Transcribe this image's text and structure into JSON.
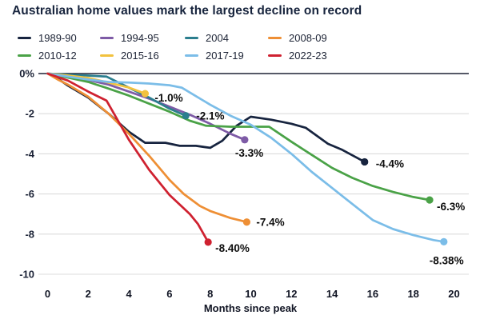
{
  "title": "Australian home values mark the largest decline on record",
  "chart_data": {
    "type": "line",
    "title": "Australian home values mark the largest decline on record",
    "xlabel": "Months since peak",
    "ylabel": "",
    "xlim": [
      0,
      20
    ],
    "ylim": [
      -10,
      0
    ],
    "grid": true,
    "legend_position": "top",
    "xticks": [
      0,
      2,
      4,
      6,
      8,
      10,
      12,
      14,
      16,
      18,
      20
    ],
    "yticks": [
      {
        "label": "0%",
        "value": 0
      },
      {
        "label": "-2",
        "value": -2
      },
      {
        "label": "-4",
        "value": -4
      },
      {
        "label": "-6",
        "value": -6
      },
      {
        "label": "-8",
        "value": -8
      },
      {
        "label": "-10",
        "value": -10
      }
    ],
    "colors": {
      "grid": "#dcdcdc",
      "zero_line": "#1e2235",
      "label_text": "#0d0d0d"
    },
    "series": [
      {
        "name": "1989-90",
        "color": "#17243f",
        "end_label": "-4.4%",
        "points": [
          [
            0,
            0
          ],
          [
            0.5,
            -0.25
          ],
          [
            1,
            -0.6
          ],
          [
            2,
            -1.2
          ],
          [
            3,
            -2.0
          ],
          [
            4,
            -2.9
          ],
          [
            4.8,
            -3.45
          ],
          [
            5.8,
            -3.45
          ],
          [
            6.5,
            -3.6
          ],
          [
            7.3,
            -3.6
          ],
          [
            8,
            -3.7
          ],
          [
            8.6,
            -3.35
          ],
          [
            9.3,
            -2.6
          ],
          [
            10,
            -2.15
          ],
          [
            11,
            -2.3
          ],
          [
            12,
            -2.5
          ],
          [
            12.7,
            -2.7
          ],
          [
            13.8,
            -3.5
          ],
          [
            14.5,
            -3.8
          ],
          [
            15.6,
            -4.4
          ]
        ],
        "label_dx": 14,
        "label_dy": 7
      },
      {
        "name": "1994-95",
        "color": "#7e5ba6",
        "end_label": "-3.3%",
        "points": [
          [
            0,
            0
          ],
          [
            1,
            -0.15
          ],
          [
            2,
            -0.32
          ],
          [
            3,
            -0.55
          ],
          [
            4,
            -0.9
          ],
          [
            5,
            -1.25
          ],
          [
            6,
            -1.65
          ],
          [
            7,
            -2.05
          ],
          [
            8,
            -2.5
          ],
          [
            9,
            -3.0
          ],
          [
            9.7,
            -3.3
          ]
        ],
        "label_dx": -12,
        "label_dy": 21
      },
      {
        "name": "2004",
        "color": "#2b7e8e",
        "end_label": "-2.1%",
        "points": [
          [
            0,
            0
          ],
          [
            1,
            -0.06
          ],
          [
            2,
            -0.1
          ],
          [
            2.9,
            -0.15
          ],
          [
            4,
            -0.7
          ],
          [
            5,
            -1.2
          ],
          [
            6,
            -1.75
          ],
          [
            6.8,
            -2.1
          ]
        ],
        "label_dx": 13,
        "label_dy": 5
      },
      {
        "name": "2008-09",
        "color": "#ee8f35",
        "end_label": "-7.4%",
        "points": [
          [
            0,
            0
          ],
          [
            0.5,
            -0.3
          ],
          [
            1,
            -0.55
          ],
          [
            2,
            -1.15
          ],
          [
            3,
            -2.0
          ],
          [
            4,
            -3.0
          ],
          [
            5,
            -4.1
          ],
          [
            6,
            -5.3
          ],
          [
            6.7,
            -6.0
          ],
          [
            7.5,
            -6.6
          ],
          [
            8,
            -6.85
          ],
          [
            9,
            -7.2
          ],
          [
            9.8,
            -7.4
          ]
        ],
        "label_dx": 12,
        "label_dy": 5
      },
      {
        "name": "2010-12",
        "color": "#4aa247",
        "end_label": "-6.3%",
        "points": [
          [
            0,
            0
          ],
          [
            1,
            -0.2
          ],
          [
            2,
            -0.42
          ],
          [
            3,
            -0.75
          ],
          [
            4,
            -1.1
          ],
          [
            5,
            -1.5
          ],
          [
            6,
            -1.9
          ],
          [
            7,
            -2.35
          ],
          [
            7.8,
            -2.6
          ],
          [
            9,
            -2.65
          ],
          [
            10.9,
            -2.65
          ],
          [
            12,
            -3.4
          ],
          [
            13,
            -4.05
          ],
          [
            14,
            -4.7
          ],
          [
            15,
            -5.2
          ],
          [
            16,
            -5.6
          ],
          [
            17,
            -5.9
          ],
          [
            18,
            -6.15
          ],
          [
            18.8,
            -6.3
          ]
        ],
        "label_dx": 9,
        "label_dy": 13
      },
      {
        "name": "2015-16",
        "color": "#f2c23e",
        "end_label": "-1.0%",
        "points": [
          [
            0,
            0
          ],
          [
            1,
            -0.1
          ],
          [
            2,
            -0.22
          ],
          [
            3,
            -0.45
          ],
          [
            4,
            -0.7
          ],
          [
            4.8,
            -1.0
          ]
        ],
        "label_dx": 12,
        "label_dy": 10
      },
      {
        "name": "2017-19",
        "color": "#7bbde8",
        "end_label": "-8.38%",
        "points": [
          [
            0,
            0
          ],
          [
            1,
            -0.15
          ],
          [
            2,
            -0.3
          ],
          [
            3,
            -0.42
          ],
          [
            4,
            -0.45
          ],
          [
            5,
            -0.5
          ],
          [
            6,
            -0.58
          ],
          [
            6.6,
            -0.7
          ],
          [
            8,
            -1.55
          ],
          [
            9,
            -2.1
          ],
          [
            10,
            -2.55
          ],
          [
            11,
            -3.2
          ],
          [
            12,
            -4.0
          ],
          [
            13,
            -4.9
          ],
          [
            14,
            -5.7
          ],
          [
            15,
            -6.5
          ],
          [
            16,
            -7.3
          ],
          [
            17,
            -7.75
          ],
          [
            18,
            -8.05
          ],
          [
            19,
            -8.3
          ],
          [
            19.5,
            -8.38
          ]
        ],
        "label_dx": -18,
        "label_dy": 28
      },
      {
        "name": "2022-23",
        "color": "#cf2130",
        "end_label": "-8.40%",
        "points": [
          [
            0,
            0
          ],
          [
            1,
            -0.35
          ],
          [
            2,
            -0.9
          ],
          [
            2.9,
            -1.35
          ],
          [
            4,
            -3.3
          ],
          [
            5,
            -4.8
          ],
          [
            6,
            -6.05
          ],
          [
            7,
            -7.0
          ],
          [
            7.4,
            -7.5
          ],
          [
            7.9,
            -8.4
          ]
        ],
        "label_dx": 9,
        "label_dy": 12
      }
    ]
  }
}
